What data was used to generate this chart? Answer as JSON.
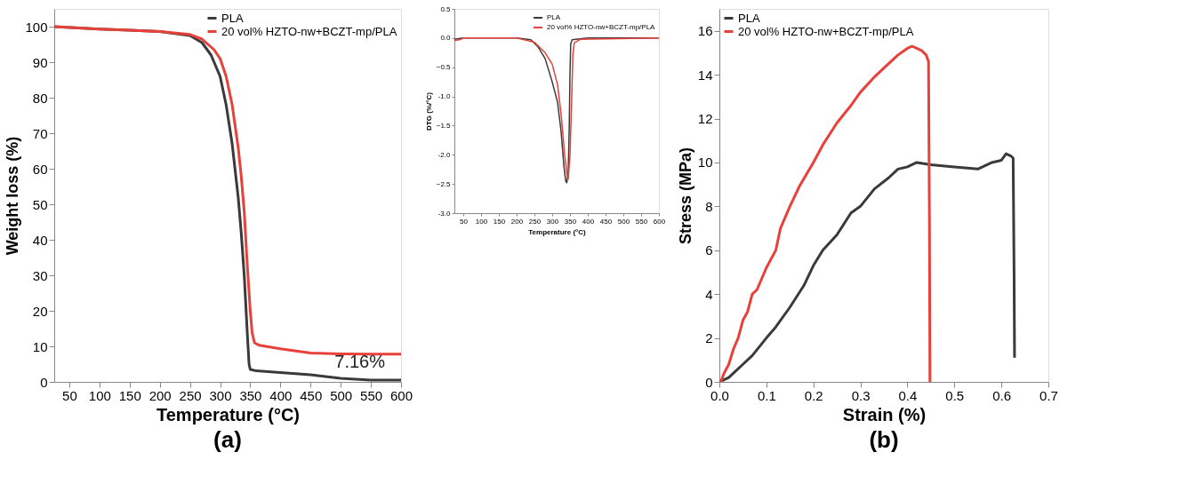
{
  "chart_data": [
    {
      "type": "line",
      "title": "(a)",
      "xlabel": "Temperature (°C)",
      "ylabel": "Weight loss (%)",
      "xlim": [
        25,
        600
      ],
      "ylim": [
        0,
        105
      ],
      "xticks": [
        50,
        100,
        150,
        200,
        250,
        300,
        350,
        400,
        450,
        500,
        550,
        600
      ],
      "yticks": [
        0,
        10,
        20,
        30,
        40,
        50,
        60,
        70,
        80,
        90,
        100
      ],
      "legend": "top right",
      "grid": false,
      "annotations": [
        "7.16%"
      ],
      "series": [
        {
          "name": "PLA",
          "color": "#3a3a3a",
          "x": [
            25,
            100,
            150,
            200,
            250,
            270,
            285,
            300,
            310,
            320,
            330,
            335,
            340,
            345,
            348,
            350,
            360,
            400,
            450,
            500,
            550,
            600
          ],
          "values": [
            100,
            99.3,
            99,
            98.6,
            97.5,
            95.5,
            92,
            86,
            78,
            67,
            52,
            42,
            30,
            14,
            5,
            3.5,
            3.1,
            2.6,
            2.0,
            1.0,
            0.5,
            0.5
          ]
        },
        {
          "name": "20 vol% HZTO-nw+BCZT-mp/PLA",
          "color": "#e8403a",
          "x": [
            25,
            100,
            150,
            200,
            250,
            270,
            290,
            300,
            310,
            320,
            330,
            335,
            340,
            345,
            350,
            353,
            357,
            365,
            400,
            450,
            500,
            550,
            600
          ],
          "values": [
            100,
            99.3,
            99,
            98.6,
            97.8,
            96.5,
            93.5,
            91,
            86,
            78,
            66,
            58,
            48,
            33,
            20,
            14,
            11,
            10.3,
            9.3,
            8.1,
            7.9,
            7.8,
            7.8
          ]
        }
      ]
    },
    {
      "type": "line",
      "xlabel": "Temperature (°C)",
      "ylabel": "DTG (%/°C)",
      "xlim": [
        25,
        600
      ],
      "ylim": [
        -3.0,
        0.5
      ],
      "xticks": [
        50,
        100,
        150,
        200,
        250,
        300,
        350,
        400,
        450,
        500,
        550,
        600
      ],
      "yticks": [
        0.5,
        {
          "value": 0,
          "label": "0.0"
        },
        -0.5,
        {
          "value": -1,
          "label": "-1.0"
        },
        -1.5,
        {
          "value": -2,
          "label": "-2.0"
        },
        -2.5,
        {
          "value": -3,
          "label": "-3.0"
        }
      ],
      "legend": "top right",
      "grid": false,
      "series": [
        {
          "name": "PLA",
          "color": "#3a3a3a",
          "x": [
            25,
            50,
            200,
            240,
            260,
            280,
            300,
            315,
            325,
            333,
            338,
            341,
            345,
            348,
            350,
            352,
            356,
            400,
            600
          ],
          "values": [
            -0.02,
            0,
            0,
            -0.03,
            -0.15,
            -0.35,
            -0.75,
            -1.1,
            -1.6,
            -2.2,
            -2.45,
            -2.48,
            -2.3,
            -1.5,
            -0.6,
            -0.1,
            -0.03,
            0,
            0
          ]
        },
        {
          "name": "20 vol% HZTO-nw+BCZT-mp/PLA",
          "color": "#e8403a",
          "x": [
            25,
            40,
            50,
            200,
            250,
            280,
            300,
            315,
            325,
            335,
            342,
            345,
            350,
            355,
            358,
            362,
            380,
            600
          ],
          "values": [
            -0.04,
            -0.03,
            0,
            0,
            -0.07,
            -0.25,
            -0.45,
            -0.8,
            -1.3,
            -2.0,
            -2.35,
            -2.42,
            -2.0,
            -1.0,
            -0.3,
            -0.08,
            -0.02,
            0
          ]
        }
      ]
    },
    {
      "type": "line",
      "title": "(b)",
      "xlabel": "Strain (%)",
      "ylabel": "Stress (MPa)",
      "xlim": [
        0,
        0.7
      ],
      "ylim": [
        0,
        17
      ],
      "xticks": [
        {
          "value": 0,
          "label": "0.0"
        },
        0.1,
        0.2,
        0.3,
        0.4,
        0.5,
        0.6,
        0.7
      ],
      "yticks": [
        0,
        2,
        4,
        6,
        8,
        10,
        12,
        14,
        16
      ],
      "legend": "top left",
      "grid": false,
      "series": [
        {
          "name": "PLA",
          "color": "#3a3a3a",
          "x": [
            0,
            0.01,
            0.02,
            0.03,
            0.05,
            0.07,
            0.1,
            0.12,
            0.15,
            0.18,
            0.2,
            0.22,
            0.25,
            0.28,
            0.3,
            0.33,
            0.36,
            0.38,
            0.4,
            0.42,
            0.45,
            0.5,
            0.55,
            0.58,
            0.6,
            0.61,
            0.62,
            0.625,
            0.627,
            0.628
          ],
          "values": [
            0,
            0.1,
            0.2,
            0.4,
            0.8,
            1.2,
            2.0,
            2.5,
            3.4,
            4.4,
            5.3,
            6.0,
            6.7,
            7.7,
            8.0,
            8.8,
            9.3,
            9.7,
            9.8,
            10.0,
            9.9,
            9.8,
            9.7,
            10.0,
            10.1,
            10.4,
            10.3,
            10.2,
            5,
            1.1
          ]
        },
        {
          "name": "20 vol% HZTO-nw+BCZT-mp/PLA",
          "color": "#e8403a",
          "x": [
            0.003,
            0.01,
            0.02,
            0.03,
            0.04,
            0.05,
            0.06,
            0.07,
            0.08,
            0.1,
            0.12,
            0.13,
            0.15,
            0.17,
            0.2,
            0.22,
            0.25,
            0.28,
            0.3,
            0.33,
            0.35,
            0.38,
            0.4,
            0.41,
            0.43,
            0.44,
            0.445,
            0.447,
            0.448
          ],
          "values": [
            0,
            0.4,
            0.8,
            1.5,
            2.0,
            2.8,
            3.2,
            4.0,
            4.2,
            5.2,
            6.0,
            7.0,
            8.0,
            8.9,
            10.0,
            10.8,
            11.8,
            12.6,
            13.2,
            13.9,
            14.3,
            14.9,
            15.2,
            15.3,
            15.1,
            14.9,
            14.6,
            7,
            0
          ]
        }
      ]
    }
  ]
}
